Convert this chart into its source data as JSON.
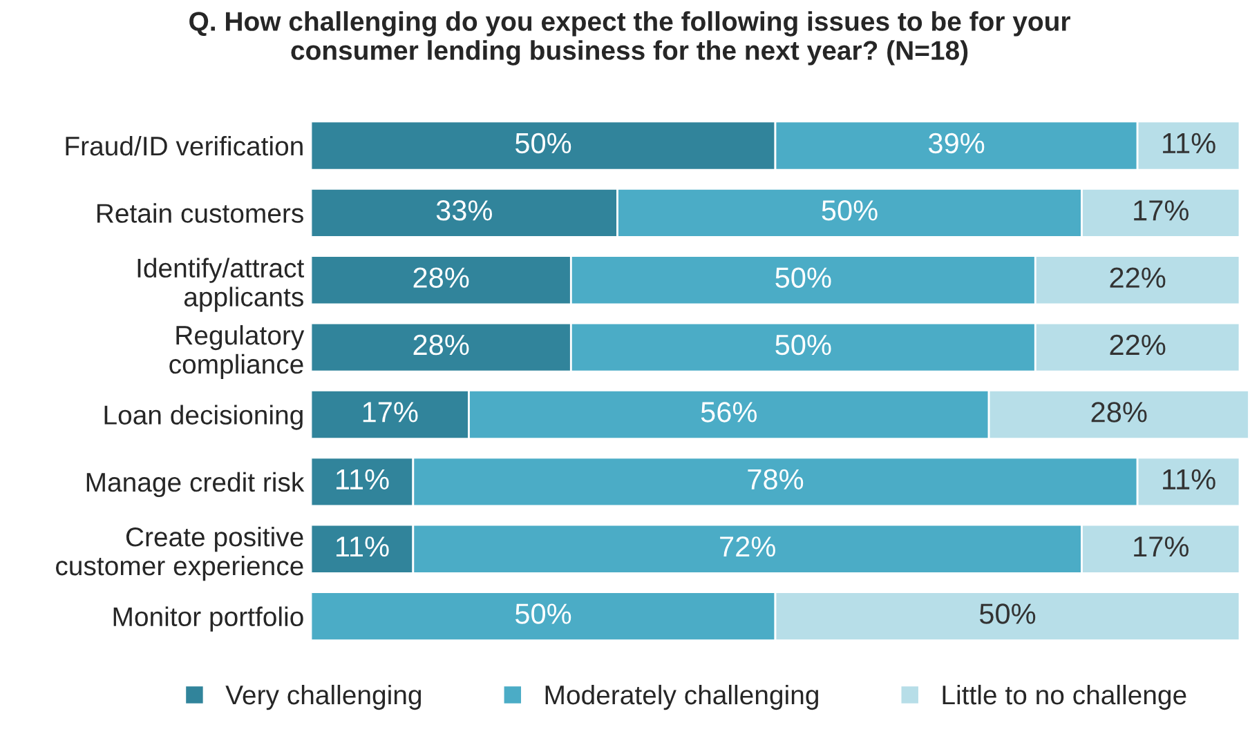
{
  "chart_data": {
    "type": "bar",
    "orientation": "horizontal",
    "stacked": true,
    "legend": "bottom",
    "title": "Q. How challenging do you expect the following issues to be for your\nconsumer lending business for the next year? (N=18)",
    "categories": [
      "Fraud/ID verification",
      "Retain customers",
      "Identify/attract\napplicants",
      "Regulatory\ncompliance",
      "Loan decisioning",
      "Manage credit risk",
      "Create positive\ncustomer experience",
      "Monitor portfolio"
    ],
    "series": [
      {
        "name": "Very challenging",
        "color": "#31849b",
        "values": [
          50,
          33,
          28,
          28,
          17,
          11,
          11,
          0
        ],
        "value_labels": [
          "50%",
          "33%",
          "28%",
          "28%",
          "17%",
          "11%",
          "11%",
          null
        ]
      },
      {
        "name": "Moderately challenging",
        "color": "#4bacc6",
        "values": [
          39,
          50,
          50,
          50,
          56,
          78,
          72,
          50
        ],
        "value_labels": [
          "39%",
          "50%",
          "50%",
          "50%",
          "56%",
          "78%",
          "72%",
          "50%"
        ]
      },
      {
        "name": "Little to no challenge",
        "color": "#b7dee8",
        "values": [
          11,
          17,
          22,
          22,
          28,
          11,
          17,
          50
        ],
        "value_labels": [
          "11%",
          "17%",
          "22%",
          "22%",
          "28%",
          "11%",
          "17%",
          "50%"
        ]
      }
    ]
  }
}
